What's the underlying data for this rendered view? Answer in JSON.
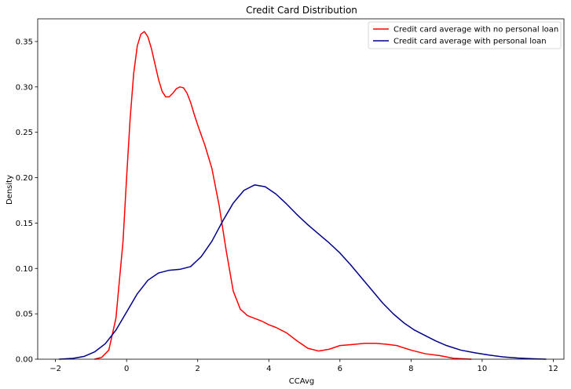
{
  "chart_data": {
    "type": "line",
    "title": "Credit Card Distribution",
    "xlabel": "CCAvg",
    "ylabel": "Density",
    "xlim": [
      -2.5,
      12.3
    ],
    "ylim": [
      0,
      0.375
    ],
    "xticks": [
      -2,
      0,
      2,
      4,
      6,
      8,
      10,
      12
    ],
    "yticks": [
      0.0,
      0.05,
      0.1,
      0.15,
      0.2,
      0.25,
      0.3,
      0.35
    ],
    "ytick_labels": [
      "0.00",
      "0.05",
      "0.10",
      "0.15",
      "0.20",
      "0.25",
      "0.30",
      "0.35"
    ],
    "xtick_labels": [
      "−2",
      "0",
      "2",
      "4",
      "6",
      "8",
      "10",
      "12"
    ],
    "grid": false,
    "legend_position": "top-right",
    "series": [
      {
        "name": "Credit card average with no personal loan",
        "color": "#ff0000",
        "x": [
          -0.9,
          -0.7,
          -0.5,
          -0.3,
          -0.1,
          0.0,
          0.1,
          0.2,
          0.3,
          0.4,
          0.5,
          0.6,
          0.7,
          0.8,
          0.9,
          1.0,
          1.1,
          1.2,
          1.3,
          1.4,
          1.5,
          1.6,
          1.7,
          1.8,
          1.9,
          2.0,
          2.2,
          2.4,
          2.6,
          2.8,
          3.0,
          3.2,
          3.4,
          3.6,
          3.8,
          4.0,
          4.2,
          4.5,
          4.8,
          5.1,
          5.4,
          5.7,
          6.0,
          6.3,
          6.7,
          7.0,
          7.3,
          7.6,
          8.0,
          8.4,
          8.8,
          9.2,
          9.7
        ],
        "y": [
          0.0,
          0.002,
          0.01,
          0.045,
          0.13,
          0.2,
          0.265,
          0.315,
          0.345,
          0.358,
          0.361,
          0.355,
          0.342,
          0.325,
          0.308,
          0.295,
          0.289,
          0.289,
          0.293,
          0.298,
          0.3,
          0.299,
          0.293,
          0.283,
          0.27,
          0.258,
          0.236,
          0.21,
          0.17,
          0.12,
          0.075,
          0.055,
          0.048,
          0.045,
          0.042,
          0.038,
          0.035,
          0.029,
          0.02,
          0.012,
          0.009,
          0.011,
          0.015,
          0.016,
          0.0175,
          0.0175,
          0.0165,
          0.015,
          0.01,
          0.006,
          0.004,
          0.001,
          0.0
        ]
      },
      {
        "name": "Credit card average with personal loan",
        "color": "#00008b",
        "x": [
          -1.9,
          -1.5,
          -1.2,
          -0.9,
          -0.6,
          -0.3,
          0.0,
          0.3,
          0.6,
          0.9,
          1.2,
          1.5,
          1.8,
          2.1,
          2.4,
          2.7,
          3.0,
          3.3,
          3.6,
          3.9,
          4.2,
          4.5,
          4.8,
          5.1,
          5.4,
          5.7,
          6.0,
          6.3,
          6.6,
          6.9,
          7.2,
          7.5,
          7.8,
          8.1,
          8.4,
          8.7,
          9.0,
          9.4,
          9.8,
          10.2,
          10.6,
          11.0,
          11.4,
          11.8
        ],
        "y": [
          0.0,
          0.001,
          0.003,
          0.008,
          0.017,
          0.032,
          0.052,
          0.072,
          0.087,
          0.095,
          0.098,
          0.099,
          0.102,
          0.113,
          0.13,
          0.152,
          0.172,
          0.186,
          0.192,
          0.19,
          0.182,
          0.171,
          0.159,
          0.148,
          0.138,
          0.128,
          0.117,
          0.104,
          0.09,
          0.076,
          0.062,
          0.05,
          0.04,
          0.032,
          0.026,
          0.02,
          0.015,
          0.01,
          0.007,
          0.0045,
          0.0025,
          0.0013,
          0.0005,
          0.0
        ]
      }
    ]
  }
}
